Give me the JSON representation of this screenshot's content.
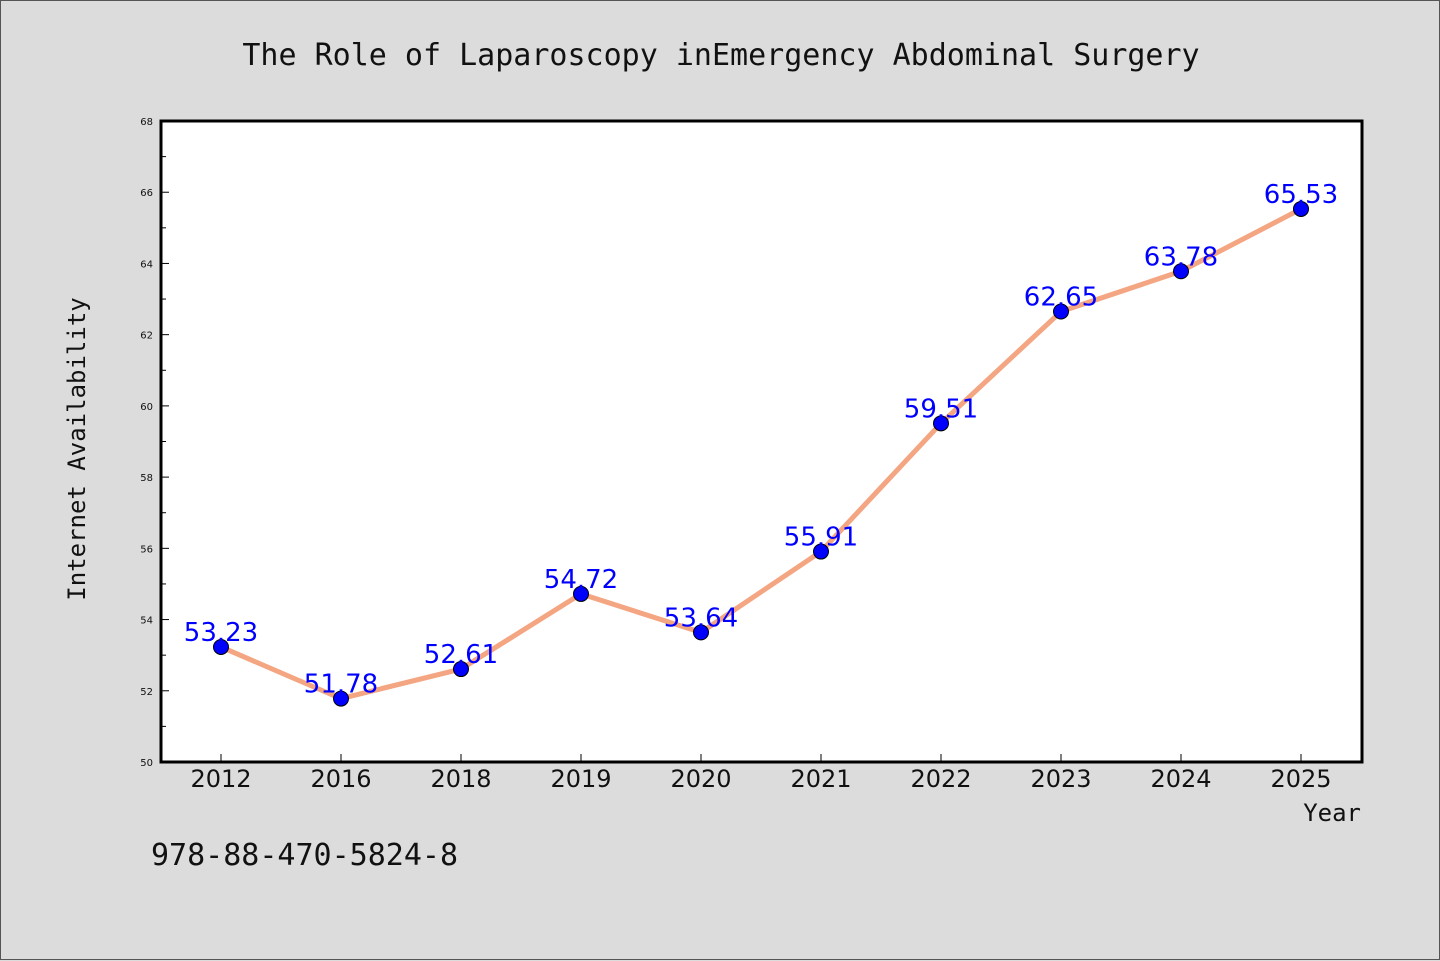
{
  "title": "The Role of Laparoscopy inEmergency Abdominal Surgery",
  "footnote": "978-88-470-5824-8",
  "colors": {
    "background": "#dcdcdc",
    "plot_background": "#ffffff",
    "line": "#f4a582",
    "marker": "#0000ff",
    "data_label": "#0000ff"
  },
  "chart_data": {
    "type": "line",
    "title": "The Role of Laparoscopy inEmergency Abdominal Surgery",
    "xlabel": "Year",
    "ylabel": "Internet Availability",
    "categories": [
      "2012",
      "2016",
      "2018",
      "2019",
      "2020",
      "2021",
      "2022",
      "2023",
      "2024",
      "2025"
    ],
    "values": [
      53.23,
      51.78,
      52.61,
      54.72,
      53.64,
      55.91,
      59.51,
      62.65,
      63.78,
      65.53
    ],
    "data_labels": [
      "53.23",
      "51.78",
      "52.61",
      "54.72",
      "53.64",
      "55.91",
      "59.51",
      "62.65",
      "63.78",
      "65.53"
    ],
    "ylim": [
      50,
      68
    ],
    "yticks": [
      50,
      52,
      54,
      56,
      58,
      60,
      62,
      64,
      66,
      68
    ],
    "grid": false,
    "legend": "none"
  }
}
